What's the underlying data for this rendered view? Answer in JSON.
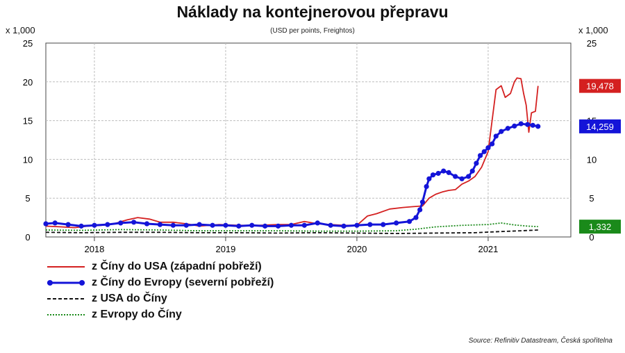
{
  "title": "Náklady na kontejnerovou přepravu",
  "subtitle": "(USD per points, Freightos)",
  "source": "Source: Refinitiv Datastream, Česká spořitelna",
  "chart_data": {
    "type": "line",
    "title": "Náklady na kontejnerovou přepravu",
    "subtitle": "(USD per points, Freightos)",
    "y_unit_label": "x 1,000",
    "ylim": [
      0,
      25
    ],
    "y_ticks": [
      0,
      5,
      10,
      15,
      20,
      25
    ],
    "x_range": [
      2017.63,
      2021.63
    ],
    "x_ticks": [
      "2018",
      "2019",
      "2020",
      "2021"
    ],
    "x_tick_positions": [
      2018,
      2019,
      2020,
      2021
    ],
    "grid": true,
    "legend_position": "bottom-left",
    "series": [
      {
        "name": "z Číny do USA (západní pobřeží)",
        "color": "#d42020",
        "style": "solid",
        "end_label": "19,478",
        "end_value": 19.478,
        "points": [
          [
            2017.63,
            1.4
          ],
          [
            2017.75,
            1.3
          ],
          [
            2017.85,
            1.2
          ],
          [
            2017.95,
            1.4
          ],
          [
            2018.05,
            1.5
          ],
          [
            2018.15,
            1.7
          ],
          [
            2018.25,
            2.2
          ],
          [
            2018.33,
            2.5
          ],
          [
            2018.42,
            2.3
          ],
          [
            2018.5,
            1.9
          ],
          [
            2018.6,
            1.9
          ],
          [
            2018.7,
            1.7
          ],
          [
            2018.8,
            1.4
          ],
          [
            2018.95,
            1.6
          ],
          [
            2019.1,
            1.5
          ],
          [
            2019.25,
            1.5
          ],
          [
            2019.4,
            1.6
          ],
          [
            2019.5,
            1.6
          ],
          [
            2019.6,
            2.0
          ],
          [
            2019.7,
            1.7
          ],
          [
            2019.8,
            1.6
          ],
          [
            2019.9,
            1.5
          ],
          [
            2020.0,
            1.5
          ],
          [
            2020.08,
            2.7
          ],
          [
            2020.15,
            3.0
          ],
          [
            2020.25,
            3.6
          ],
          [
            2020.35,
            3.8
          ],
          [
            2020.42,
            3.9
          ],
          [
            2020.5,
            4.0
          ],
          [
            2020.55,
            5.0
          ],
          [
            2020.6,
            5.5
          ],
          [
            2020.65,
            5.8
          ],
          [
            2020.7,
            6.0
          ],
          [
            2020.75,
            6.1
          ],
          [
            2020.8,
            6.8
          ],
          [
            2020.85,
            7.2
          ],
          [
            2020.9,
            7.8
          ],
          [
            2020.95,
            9.0
          ],
          [
            2021.0,
            11.0
          ],
          [
            2021.03,
            15.0
          ],
          [
            2021.06,
            19.0
          ],
          [
            2021.1,
            19.5
          ],
          [
            2021.13,
            18.0
          ],
          [
            2021.17,
            18.5
          ],
          [
            2021.2,
            20.0
          ],
          [
            2021.22,
            20.5
          ],
          [
            2021.25,
            20.4
          ],
          [
            2021.27,
            18.5
          ],
          [
            2021.29,
            17.0
          ],
          [
            2021.31,
            13.5
          ],
          [
            2021.33,
            16.0
          ],
          [
            2021.36,
            16.2
          ],
          [
            2021.38,
            19.478
          ]
        ]
      },
      {
        "name": "z Číny do Evropy (severní pobřeží)",
        "color": "#1414d8",
        "style": "markers",
        "end_label": "14,259",
        "end_value": 14.259,
        "points": [
          [
            2017.63,
            1.7
          ],
          [
            2017.7,
            1.8
          ],
          [
            2017.8,
            1.6
          ],
          [
            2017.9,
            1.4
          ],
          [
            2018.0,
            1.5
          ],
          [
            2018.1,
            1.6
          ],
          [
            2018.2,
            1.8
          ],
          [
            2018.3,
            1.9
          ],
          [
            2018.4,
            1.7
          ],
          [
            2018.5,
            1.6
          ],
          [
            2018.6,
            1.5
          ],
          [
            2018.7,
            1.5
          ],
          [
            2018.8,
            1.6
          ],
          [
            2018.9,
            1.5
          ],
          [
            2019.0,
            1.5
          ],
          [
            2019.1,
            1.4
          ],
          [
            2019.2,
            1.5
          ],
          [
            2019.3,
            1.4
          ],
          [
            2019.4,
            1.4
          ],
          [
            2019.5,
            1.5
          ],
          [
            2019.6,
            1.5
          ],
          [
            2019.7,
            1.8
          ],
          [
            2019.8,
            1.5
          ],
          [
            2019.9,
            1.4
          ],
          [
            2020.0,
            1.5
          ],
          [
            2020.1,
            1.6
          ],
          [
            2020.2,
            1.6
          ],
          [
            2020.3,
            1.8
          ],
          [
            2020.4,
            2.0
          ],
          [
            2020.45,
            2.5
          ],
          [
            2020.48,
            3.5
          ],
          [
            2020.5,
            4.5
          ],
          [
            2020.53,
            6.5
          ],
          [
            2020.55,
            7.5
          ],
          [
            2020.58,
            8.0
          ],
          [
            2020.62,
            8.2
          ],
          [
            2020.66,
            8.5
          ],
          [
            2020.7,
            8.3
          ],
          [
            2020.75,
            7.8
          ],
          [
            2020.8,
            7.5
          ],
          [
            2020.85,
            7.8
          ],
          [
            2020.88,
            8.5
          ],
          [
            2020.91,
            9.5
          ],
          [
            2020.94,
            10.5
          ],
          [
            2020.97,
            11.0
          ],
          [
            2021.0,
            11.5
          ],
          [
            2021.03,
            12.0
          ],
          [
            2021.06,
            13.0
          ],
          [
            2021.1,
            13.6
          ],
          [
            2021.15,
            14.0
          ],
          [
            2021.2,
            14.3
          ],
          [
            2021.25,
            14.6
          ],
          [
            2021.3,
            14.5
          ],
          [
            2021.34,
            14.4
          ],
          [
            2021.38,
            14.259
          ]
        ]
      },
      {
        "name": "z USA do Číny",
        "color": "#111111",
        "style": "dashed",
        "points": [
          [
            2017.63,
            0.6
          ],
          [
            2017.9,
            0.55
          ],
          [
            2018.2,
            0.6
          ],
          [
            2018.5,
            0.6
          ],
          [
            2018.8,
            0.55
          ],
          [
            2019.1,
            0.55
          ],
          [
            2019.4,
            0.5
          ],
          [
            2019.7,
            0.55
          ],
          [
            2020.0,
            0.5
          ],
          [
            2020.3,
            0.45
          ],
          [
            2020.6,
            0.5
          ],
          [
            2020.9,
            0.55
          ],
          [
            2021.1,
            0.7
          ],
          [
            2021.25,
            0.8
          ],
          [
            2021.38,
            0.9
          ]
        ]
      },
      {
        "name": "z Evropy do Číny",
        "color": "#1a8a1a",
        "style": "dotted",
        "end_label": "1,332",
        "end_value": 1.332,
        "points": [
          [
            2017.63,
            0.9
          ],
          [
            2017.9,
            0.85
          ],
          [
            2018.2,
            0.95
          ],
          [
            2018.5,
            0.9
          ],
          [
            2018.8,
            0.8
          ],
          [
            2019.1,
            0.8
          ],
          [
            2019.4,
            0.8
          ],
          [
            2019.7,
            0.75
          ],
          [
            2020.0,
            0.75
          ],
          [
            2020.3,
            0.8
          ],
          [
            2020.45,
            1.0
          ],
          [
            2020.6,
            1.3
          ],
          [
            2020.8,
            1.5
          ],
          [
            2021.0,
            1.6
          ],
          [
            2021.1,
            1.8
          ],
          [
            2021.2,
            1.55
          ],
          [
            2021.3,
            1.4
          ],
          [
            2021.38,
            1.332
          ]
        ]
      }
    ]
  }
}
